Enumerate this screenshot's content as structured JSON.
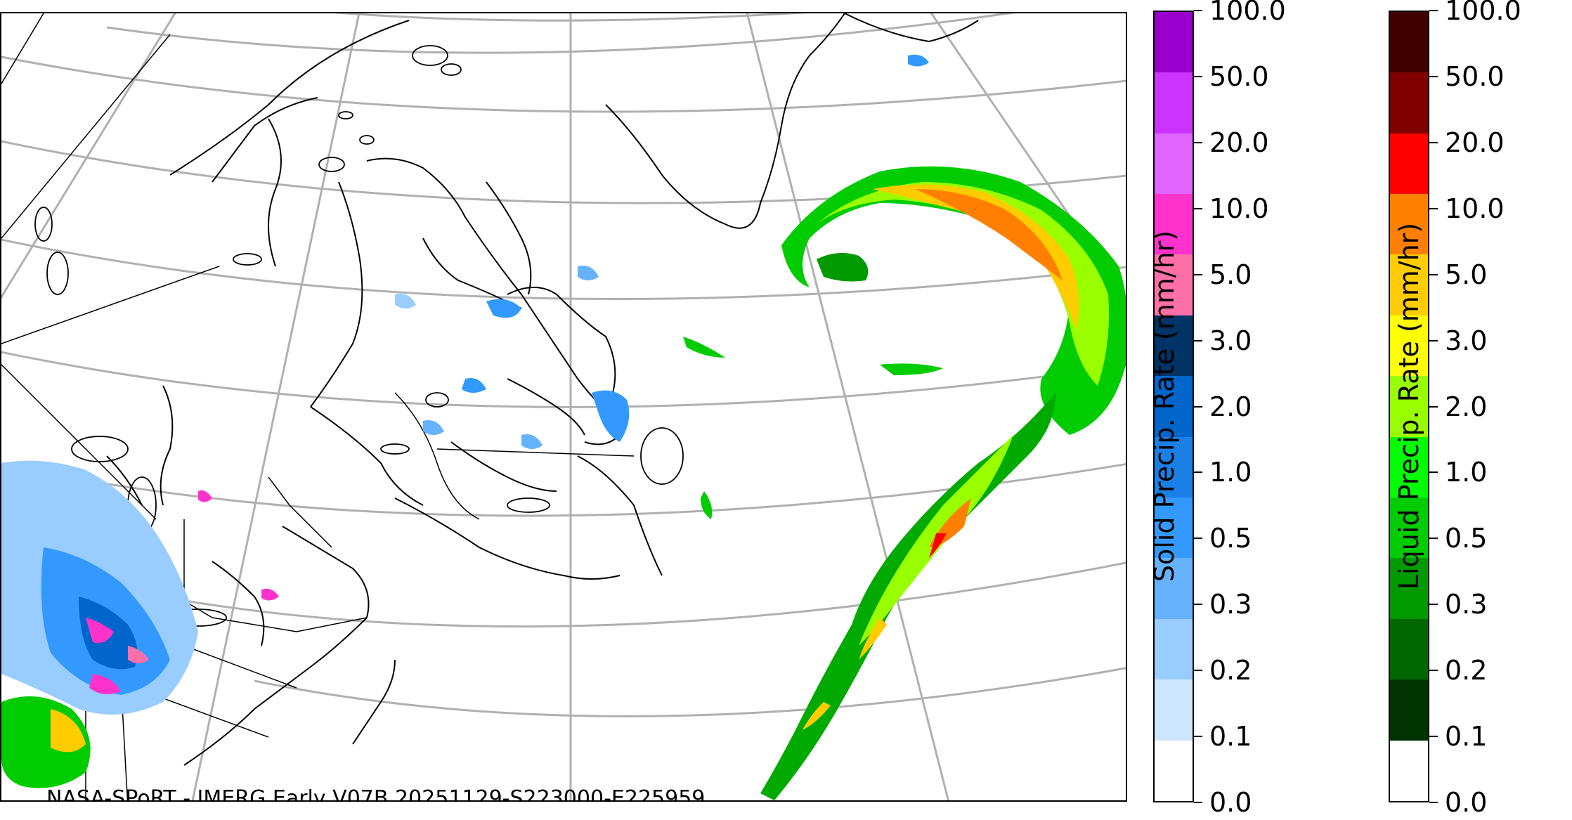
{
  "credit": "NASA-SPoRT - IMERG Early V07B 20251129-S223000-E225959",
  "colorbars": [
    {
      "name": "solid",
      "title": "Solid Precip. Rate (mm/hr)",
      "tick_labels": [
        "0.0",
        "0.1",
        "0.2",
        "0.3",
        "0.5",
        "1.0",
        "2.0",
        "3.0",
        "5.0",
        "10.0",
        "20.0",
        "50.0",
        "100.0"
      ],
      "colors": [
        "#ffffff",
        "#cce6ff",
        "#99ccff",
        "#66b2ff",
        "#3399ff",
        "#1a80e6",
        "#0066cc",
        "#003366",
        "#ff6fa8",
        "#ff33cc",
        "#e066ff",
        "#cc33ff",
        "#9900cc"
      ]
    },
    {
      "name": "liquid",
      "title": "Liquid Precip. Rate (mm/hr)",
      "tick_labels": [
        "0.0",
        "0.1",
        "0.2",
        "0.3",
        "0.5",
        "1.0",
        "2.0",
        "3.0",
        "5.0",
        "10.0",
        "20.0",
        "50.0",
        "100.0"
      ],
      "colors": [
        "#ffffff",
        "#003300",
        "#006600",
        "#009900",
        "#00cc00",
        "#00ff00",
        "#99ff00",
        "#ffff00",
        "#ffcc00",
        "#ff8000",
        "#ff0000",
        "#800000",
        "#400000"
      ]
    }
  ],
  "map": {
    "projection": "polar-stereographic",
    "graticule": "lat-lon grid",
    "coastline_color": "#000000",
    "grid_color": "#b0b0b0"
  }
}
